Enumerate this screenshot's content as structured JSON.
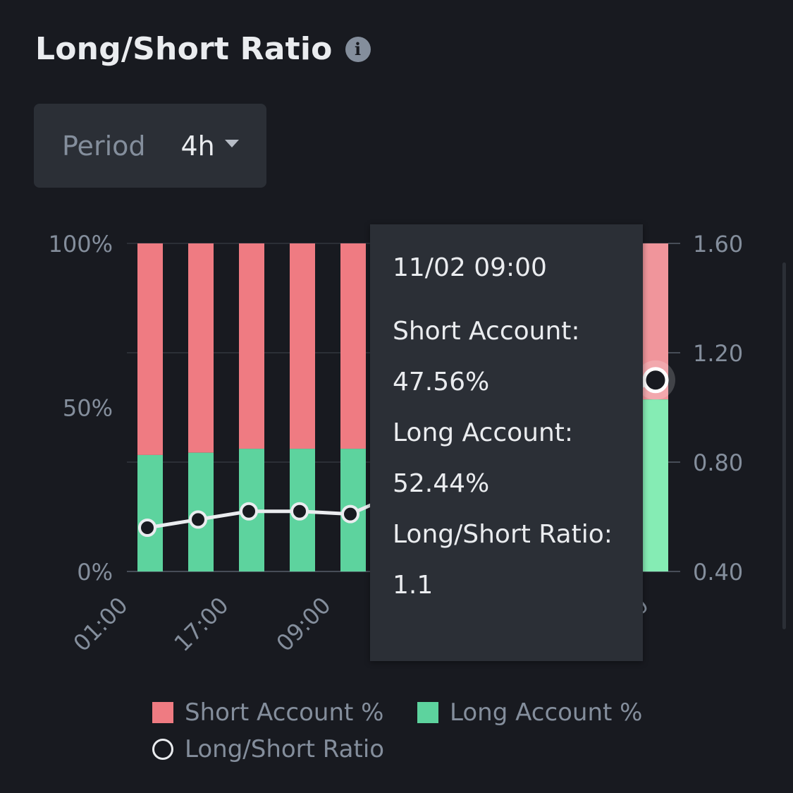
{
  "header": {
    "title": "Long/Short Ratio",
    "info_icon": "info-icon"
  },
  "controls": {
    "period_label": "Period",
    "period_value": "4h"
  },
  "colors": {
    "short": "#ef7b82",
    "long": "#5dd39e",
    "short_highlight": "#f0959b",
    "long_highlight": "#85ecb4",
    "ratio_line": "#eaecef"
  },
  "tooltip": {
    "time": "11/02 09:00",
    "short_label": "Short Account:",
    "short_value": "47.56%",
    "long_label": "Long Account:",
    "long_value": "52.44%",
    "ratio_label": "Long/Short Ratio:",
    "ratio_value": "1.1"
  },
  "chart_data": {
    "type": "bar",
    "stacked": true,
    "left_ticks": [
      "0%",
      "50%",
      "100%"
    ],
    "left_ylim": [
      0,
      100
    ],
    "right_ticks": [
      "0.40",
      "0.80",
      "1.20",
      "1.60"
    ],
    "right_ylim": [
      0.4,
      1.6
    ],
    "x_tick_labels": [
      "01:00",
      "17:00",
      "09:00",
      "00"
    ],
    "grid": true,
    "legend_position": "bottom",
    "series": [
      {
        "name": "Short Account %",
        "values": [
          64.5,
          63.8,
          62.6,
          62.6,
          62.6,
          47.56
        ]
      },
      {
        "name": "Long Account %",
        "values": [
          35.5,
          36.2,
          37.4,
          37.4,
          37.4,
          52.44
        ]
      },
      {
        "name": "Long/Short Ratio",
        "axis": "right",
        "values": [
          0.56,
          0.59,
          0.62,
          0.62,
          0.61,
          1.1
        ]
      }
    ],
    "highlight_index": 5
  }
}
